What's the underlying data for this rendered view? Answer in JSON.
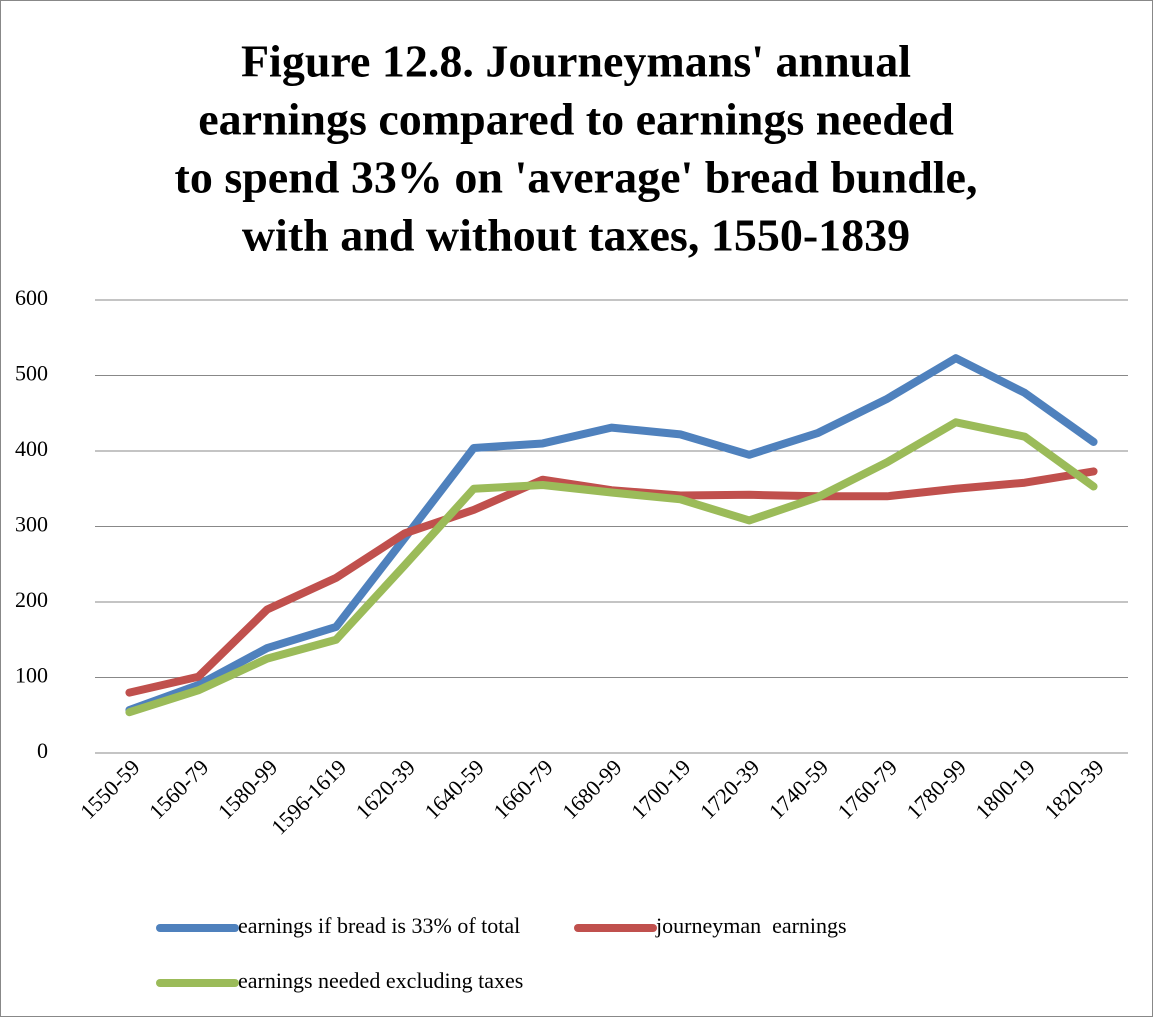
{
  "chart_data": {
    "type": "line",
    "title": [
      "Figure 12.8. Journeymans' annual",
      "earnings compared to earnings needed",
      "to spend 33% on 'average' bread bundle,",
      "with and without taxes, 1550-1839"
    ],
    "categories": [
      "1550-59",
      "1560-79",
      "1580-99",
      "1596-1619",
      "1620-39",
      "1640-59",
      "1660-79",
      "1680-99",
      "1700-19",
      "1720-39",
      "1740-59",
      "1760-79",
      "1780-99",
      "1800-19",
      "1820-39"
    ],
    "series": [
      {
        "name": "earnings if bread is 33% of total",
        "color": "#4f81bd",
        "values": [
          57,
          90,
          139,
          167,
          285,
          404,
          410,
          431,
          422,
          395,
          424,
          469,
          523,
          477,
          412
        ]
      },
      {
        "name": "journeyman  earnings",
        "color": "#c0504d",
        "values": [
          80,
          101,
          190,
          232,
          291,
          322,
          362,
          348,
          341,
          342,
          340,
          340,
          350,
          358,
          373
        ]
      },
      {
        "name": "earnings needed excluding taxes",
        "color": "#9bbb59",
        "values": [
          54,
          83,
          125,
          150,
          249,
          350,
          355,
          345,
          336,
          308,
          339,
          385,
          438,
          419,
          353
        ]
      }
    ],
    "ylim": [
      0,
      600
    ],
    "yticks": [
      0,
      100,
      200,
      300,
      400,
      500,
      600
    ],
    "grid": true,
    "legend": "bottom"
  }
}
